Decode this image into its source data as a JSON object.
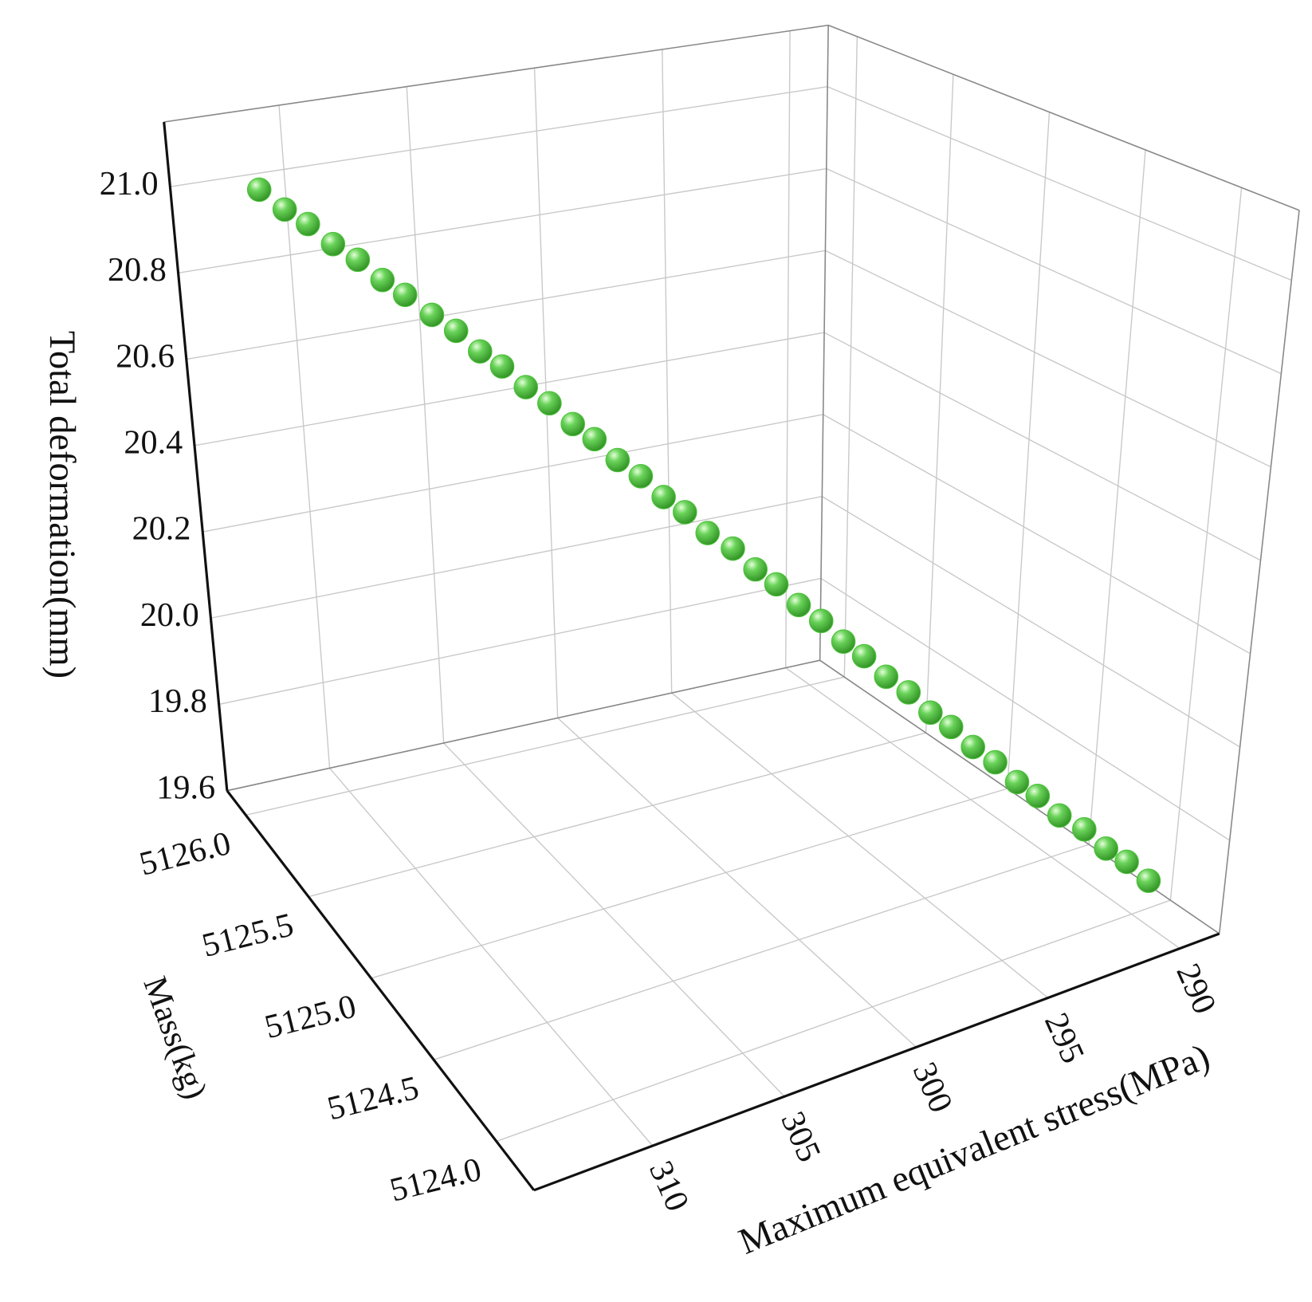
{
  "chart_data": {
    "type": "scatter3d",
    "x_label": "Maximum equivalent stress(MPa)",
    "y_label": "Mass(kg)",
    "z_label": "Total deformation(mm)",
    "color": "#4cc23a",
    "xlim": [
      314.5,
      288.5
    ],
    "ylim": [
      5123.7,
      5126.15
    ],
    "zlim": [
      19.6,
      21.15
    ],
    "xticks": [
      310,
      305,
      300,
      295,
      290
    ],
    "yticks": [
      {
        "value": 5124,
        "label": "5124.0"
      },
      5124.5,
      {
        "value": 5125,
        "label": "5125.0"
      },
      5125.5,
      {
        "value": 5126,
        "label": "5126.0"
      }
    ],
    "zticks": [
      19.6,
      19.8,
      {
        "value": 20,
        "label": "20.0"
      },
      20.2,
      20.4,
      20.6,
      20.8,
      {
        "value": 21,
        "label": "21.0"
      }
    ],
    "grid": true,
    "x": [
      313.5,
      312.9,
      312.3,
      311.7,
      311.1,
      310.5,
      309.9,
      309.2,
      308.6,
      308.0,
      307.4,
      306.8,
      306.2,
      305.6,
      305.0,
      304.4,
      303.8,
      303.2,
      302.6,
      302.0,
      301.3,
      300.7,
      300.1,
      299.5,
      298.9,
      298.3,
      297.7,
      297.1,
      296.5,
      295.9,
      295.3,
      294.7,
      294.1,
      293.5,
      292.9,
      292.3,
      291.6,
      291.0,
      290.4,
      289.8
    ],
    "y": [
      5125.8,
      5125.75,
      5125.71,
      5125.66,
      5125.61,
      5125.56,
      5125.52,
      5125.47,
      5125.42,
      5125.37,
      5125.33,
      5125.28,
      5125.23,
      5125.18,
      5125.14,
      5125.09,
      5125.04,
      5124.99,
      5124.95,
      5124.9,
      5124.85,
      5124.8,
      5124.76,
      5124.71,
      5124.66,
      5124.61,
      5124.57,
      5124.52,
      5124.47,
      5124.42,
      5124.38,
      5124.33,
      5124.28,
      5124.23,
      5124.19,
      5124.14,
      5124.09,
      5124.04,
      5124.0,
      5123.95
    ],
    "z": [
      21.05,
      21.01,
      20.98,
      20.94,
      20.91,
      20.87,
      20.84,
      20.8,
      20.77,
      20.73,
      20.7,
      20.66,
      20.63,
      20.59,
      20.56,
      20.52,
      20.49,
      20.45,
      20.42,
      20.38,
      20.35,
      20.31,
      20.28,
      20.24,
      20.21,
      20.17,
      20.14,
      20.1,
      20.07,
      20.03,
      20.0,
      19.96,
      19.93,
      19.89,
      19.86,
      19.82,
      19.79,
      19.75,
      19.72,
      19.68
    ]
  }
}
